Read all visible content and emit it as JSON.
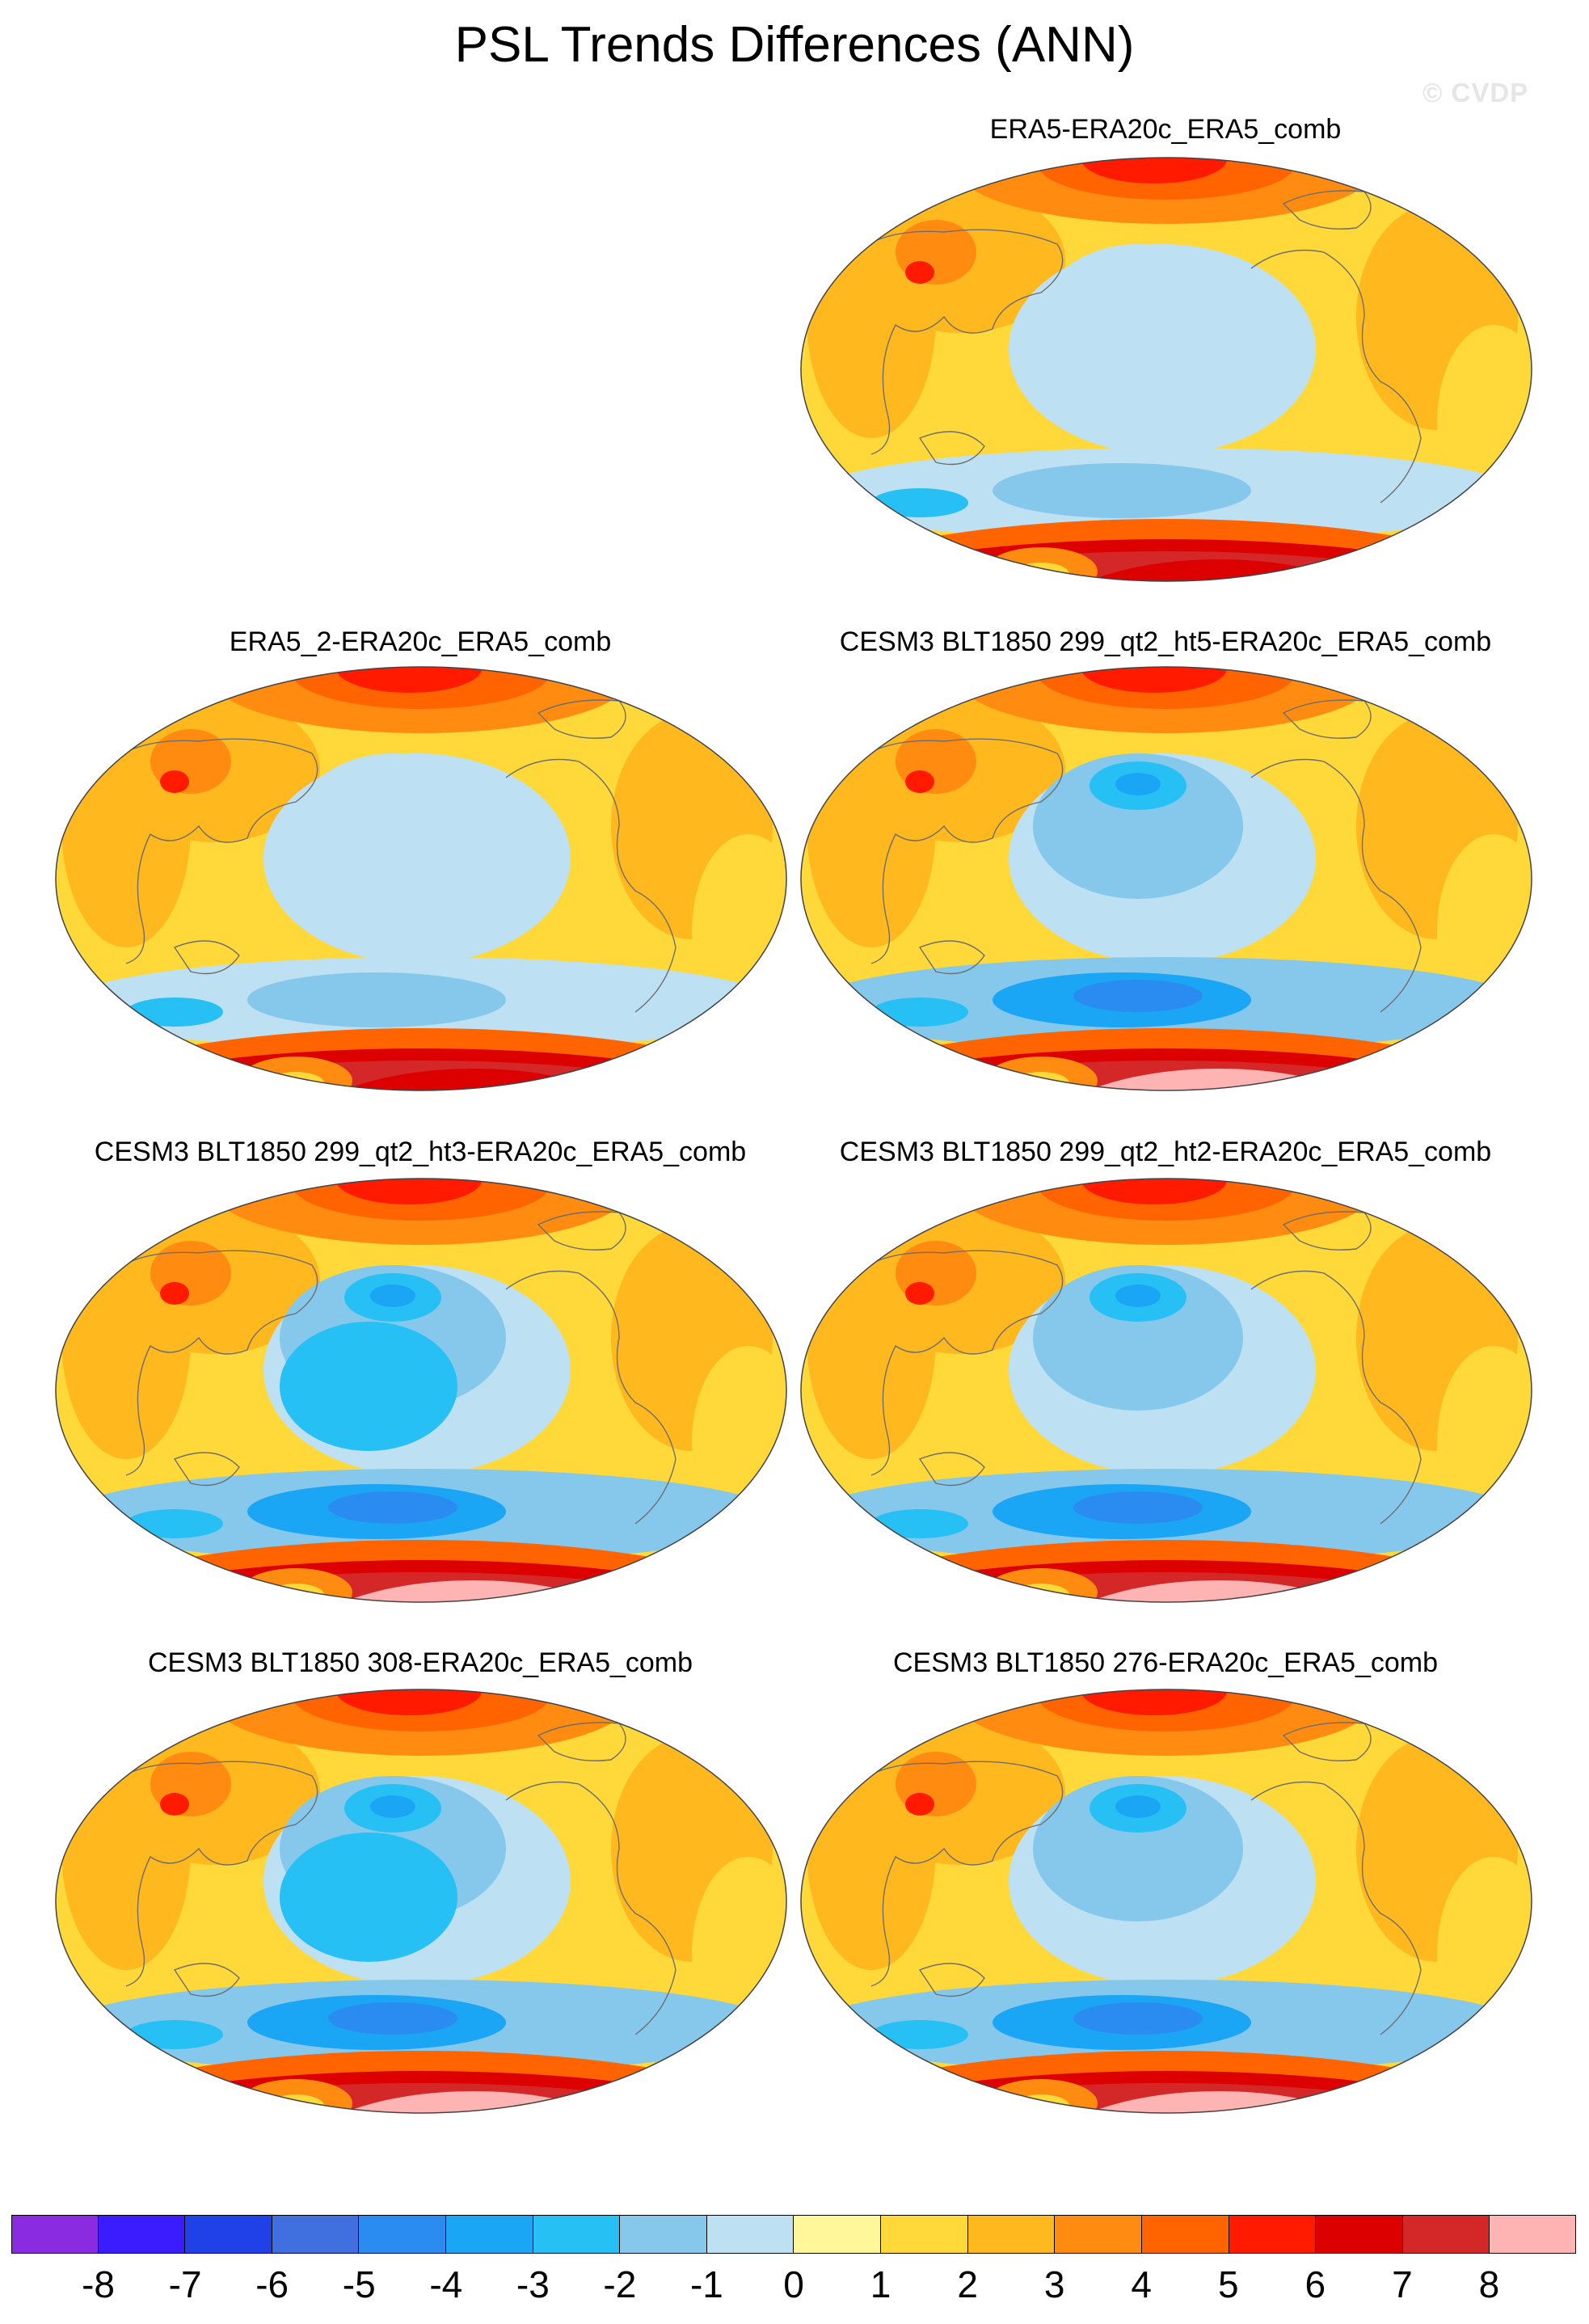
{
  "title": "PSL Trends Differences (ANN)",
  "watermark": "© CVDP",
  "panels": [
    {
      "id": "p1",
      "label": "ERA5-ERA20c_ERA5_comb",
      "variant": 0
    },
    {
      "id": "p2",
      "label": "ERA5_2-ERA20c_ERA5_comb",
      "variant": 0
    },
    {
      "id": "p3",
      "label": "CESM3 BLT1850 299_qt2_ht5-ERA20c_ERA5_comb",
      "variant": 1
    },
    {
      "id": "p4",
      "label": "CESM3 BLT1850 299_qt2_ht3-ERA20c_ERA5_comb",
      "variant": 2
    },
    {
      "id": "p5",
      "label": "CESM3 BLT1850 299_qt2_ht2-ERA20c_ERA5_comb",
      "variant": 1
    },
    {
      "id": "p6",
      "label": "CESM3 BLT1850 308-ERA20c_ERA5_comb",
      "variant": 2
    },
    {
      "id": "p7",
      "label": "CESM3 BLT1850 276-ERA20c_ERA5_comb",
      "variant": 1
    }
  ],
  "colorbar": {
    "tick_labels": [
      "-8",
      "-7",
      "-6",
      "-5",
      "-4",
      "-3",
      "-2",
      "-1",
      "0",
      "1",
      "2",
      "3",
      "4",
      "5",
      "6",
      "7",
      "8"
    ],
    "colors": [
      "#8a2be2",
      "#3a1cff",
      "#2040e8",
      "#4070e0",
      "#2a8cf0",
      "#1aa6f5",
      "#27c0f5",
      "#86c8ec",
      "#bde0f2",
      "#fff79a",
      "#ffd83a",
      "#ffb81e",
      "#ff8c10",
      "#ff6400",
      "#ff1a00",
      "#dc0000",
      "#d42828",
      "#ffb4b4"
    ]
  }
}
